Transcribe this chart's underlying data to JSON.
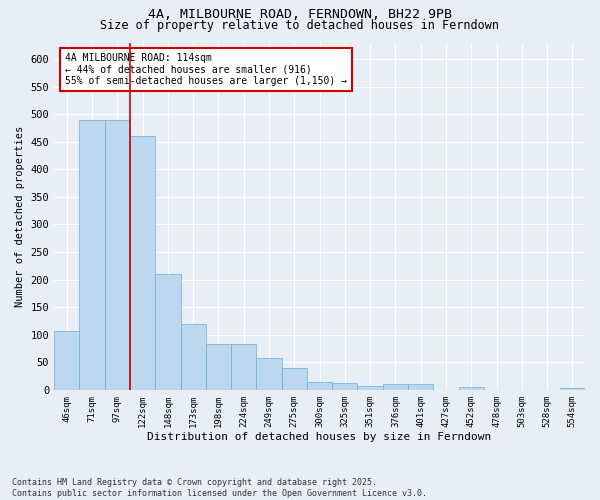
{
  "title": "4A, MILBOURNE ROAD, FERNDOWN, BH22 9PB",
  "subtitle": "Size of property relative to detached houses in Ferndown",
  "xlabel": "Distribution of detached houses by size in Ferndown",
  "ylabel": "Number of detached properties",
  "categories": [
    "46sqm",
    "71sqm",
    "97sqm",
    "122sqm",
    "148sqm",
    "173sqm",
    "198sqm",
    "224sqm",
    "249sqm",
    "275sqm",
    "300sqm",
    "325sqm",
    "351sqm",
    "376sqm",
    "401sqm",
    "427sqm",
    "452sqm",
    "478sqm",
    "503sqm",
    "528sqm",
    "554sqm"
  ],
  "values": [
    107,
    490,
    490,
    460,
    210,
    120,
    83,
    83,
    58,
    40,
    15,
    13,
    7,
    11,
    11,
    0,
    5,
    0,
    0,
    0,
    3
  ],
  "bar_color": "#bdd7ee",
  "bar_edge_color": "#6baed6",
  "red_line_x": 2.5,
  "annotation_text": "4A MILBOURNE ROAD: 114sqm\n← 44% of detached houses are smaller (916)\n55% of semi-detached houses are larger (1,150) →",
  "annotation_box_color": "#ffffff",
  "annotation_box_edge": "#cc0000",
  "red_line_color": "#cc0000",
  "yticks": [
    0,
    50,
    100,
    150,
    200,
    250,
    300,
    350,
    400,
    450,
    500,
    550,
    600
  ],
  "ylim": [
    0,
    630
  ],
  "footer": "Contains HM Land Registry data © Crown copyright and database right 2025.\nContains public sector information licensed under the Open Government Licence v3.0.",
  "background_color": "#e8eef5",
  "plot_background": "#e8eef5",
  "title_fontsize": 9.5,
  "subtitle_fontsize": 8.5,
  "footer_fontsize": 6.0
}
